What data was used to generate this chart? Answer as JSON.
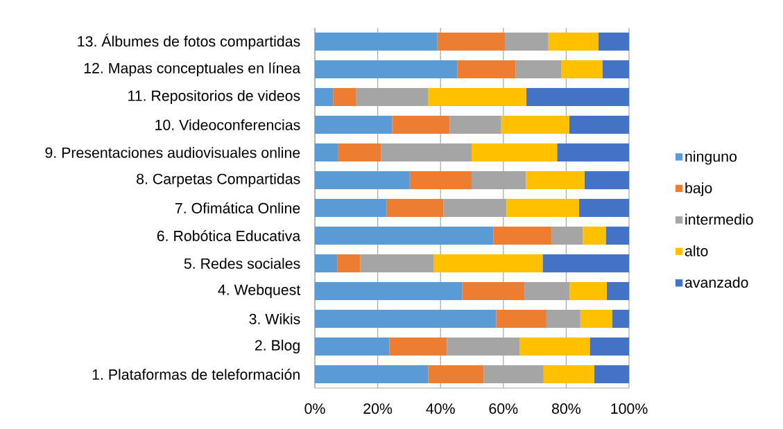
{
  "chart_data": {
    "type": "bar",
    "orientation": "horizontal",
    "stacked": true,
    "categories": [
      "13. Álbumes de fotos compartidas",
      "12. Mapas conceptuales en línea",
      "11. Repositorios de videos",
      "10. Videoconferencias",
      "9. Presentaciones audiovisuales online",
      "8. Carpetas Compartidas",
      "7. Ofimática Online",
      "6. Robótica Educativa",
      "5. Redes sociales",
      "4. Webquest",
      "3. Wikis",
      "2. Blog",
      "1. Plataformas de teleformación"
    ],
    "series": [
      {
        "name": "ninguno",
        "color": "#5b9bd5",
        "values": [
          39.0,
          45.4,
          5.8,
          24.6,
          7.3,
          30.2,
          22.8,
          56.8,
          7.1,
          46.9,
          57.7,
          23.7,
          36.1
        ]
      },
      {
        "name": "bajo",
        "color": "#ed7d31",
        "values": [
          21.5,
          18.5,
          7.4,
          18.3,
          13.8,
          19.7,
          18.1,
          18.5,
          7.3,
          19.8,
          16.0,
          18.3,
          17.6
        ]
      },
      {
        "name": "intermedio",
        "color": "#a5a5a5",
        "values": [
          13.8,
          14.6,
          22.9,
          16.4,
          28.8,
          17.3,
          20.1,
          10.0,
          23.4,
          14.4,
          10.8,
          23.2,
          19.1
        ]
      },
      {
        "name": "alto",
        "color": "#ffc000",
        "values": [
          15.9,
          13.0,
          31.2,
          21.7,
          27.2,
          18.6,
          23.1,
          7.3,
          34.7,
          11.8,
          10.1,
          22.3,
          16.1
        ]
      },
      {
        "name": "avanzado",
        "color": "#4472c4",
        "values": [
          9.8,
          8.5,
          32.7,
          19.0,
          22.9,
          14.2,
          15.9,
          7.4,
          27.5,
          7.1,
          5.4,
          12.5,
          11.1
        ]
      }
    ],
    "xlim": [
      0,
      100
    ],
    "xticks": [
      {
        "value": 0,
        "label": "0%"
      },
      {
        "value": 20,
        "label": "20%"
      },
      {
        "value": 40,
        "label": "40%"
      },
      {
        "value": 60,
        "label": "60%"
      },
      {
        "value": 80,
        "label": "80%"
      },
      {
        "value": 100,
        "label": "100%"
      }
    ],
    "grid": "x",
    "legend": "right"
  }
}
